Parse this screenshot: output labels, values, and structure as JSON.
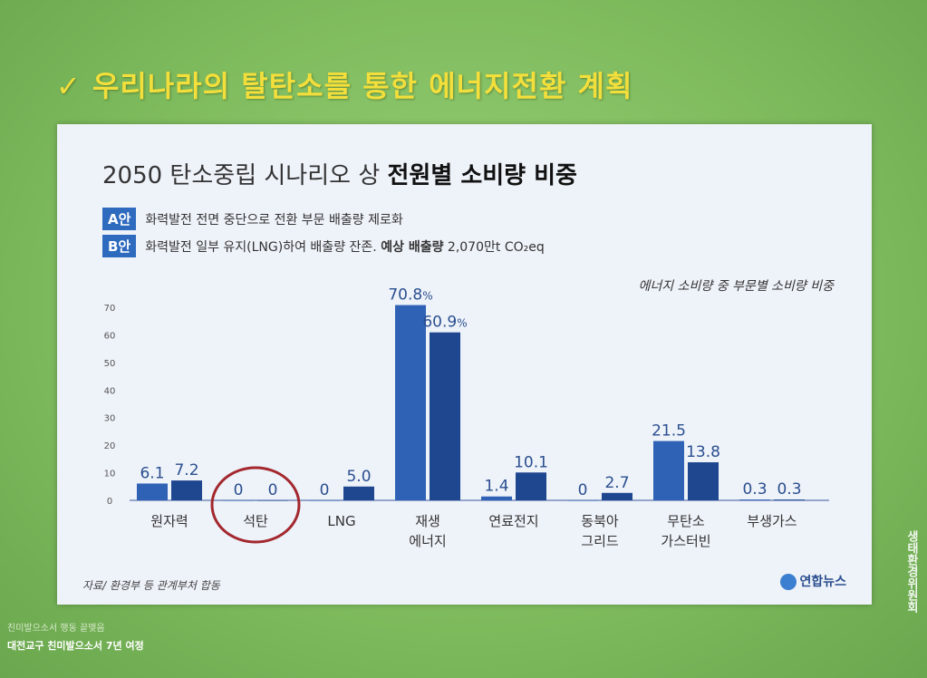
{
  "slide": {
    "title": "✓ 우리나라의 탈탄소를 통한 에너지전환 계획",
    "caption_small": "친미발으소서 행동 끝맺음",
    "caption_main": "대전교구 친미발으소서 7년 여정",
    "side_text": "생태환경위원회"
  },
  "panel": {
    "title_regular": "2050 탄소중립 시나리오 상 ",
    "title_bold": "전원별 소비량 비중",
    "legend": [
      {
        "badge": "A안",
        "text": "화력발전 전면 중단으로 전환 부문 배출량 제로화"
      },
      {
        "badge": "B안",
        "text": "화력발전 일부 유지(LNG)하여 배출량 잔존. ",
        "text_bold": "예상 배출량",
        "text_tail": " 2,070만t CO₂eq"
      }
    ],
    "subtitle": "에너지 소비량 중 부문별 소비량 비중",
    "source": "자료/ 환경부 등 관계부처 합동",
    "logo": "연합뉴스"
  },
  "colors": {
    "series_a": "#2f62b5",
    "series_b": "#1e4790",
    "label": "#2a4f8f",
    "circle": "#a3282e"
  },
  "chart_data": {
    "type": "bar",
    "categories": [
      "원자력",
      "석탄",
      "LNG",
      "재생\n에너지",
      "연료전지",
      "동북아\n그리드",
      "무탄소\n가스터빈",
      "부생가스"
    ],
    "series": [
      {
        "values": [
          6.1,
          0,
          0,
          70.8,
          1.4,
          0,
          21.5,
          0.3
        ],
        "labels": [
          "6.1",
          "0",
          "0",
          "70.8%",
          "1.4",
          "0",
          "21.5",
          "0.3"
        ]
      },
      {
        "values": [
          7.2,
          0,
          5.0,
          60.9,
          10.1,
          2.7,
          13.8,
          0.3
        ],
        "labels": [
          "7.2",
          "0",
          "5.0",
          "60.9%",
          "10.1",
          "2.7",
          "13.8",
          "0.3"
        ]
      }
    ],
    "yticks": [
      "0",
      "10",
      "20",
      "30",
      "40",
      "50",
      "60",
      "70"
    ],
    "ylim": [
      0,
      70
    ],
    "grid": false,
    "highlight_category": "석탄"
  }
}
